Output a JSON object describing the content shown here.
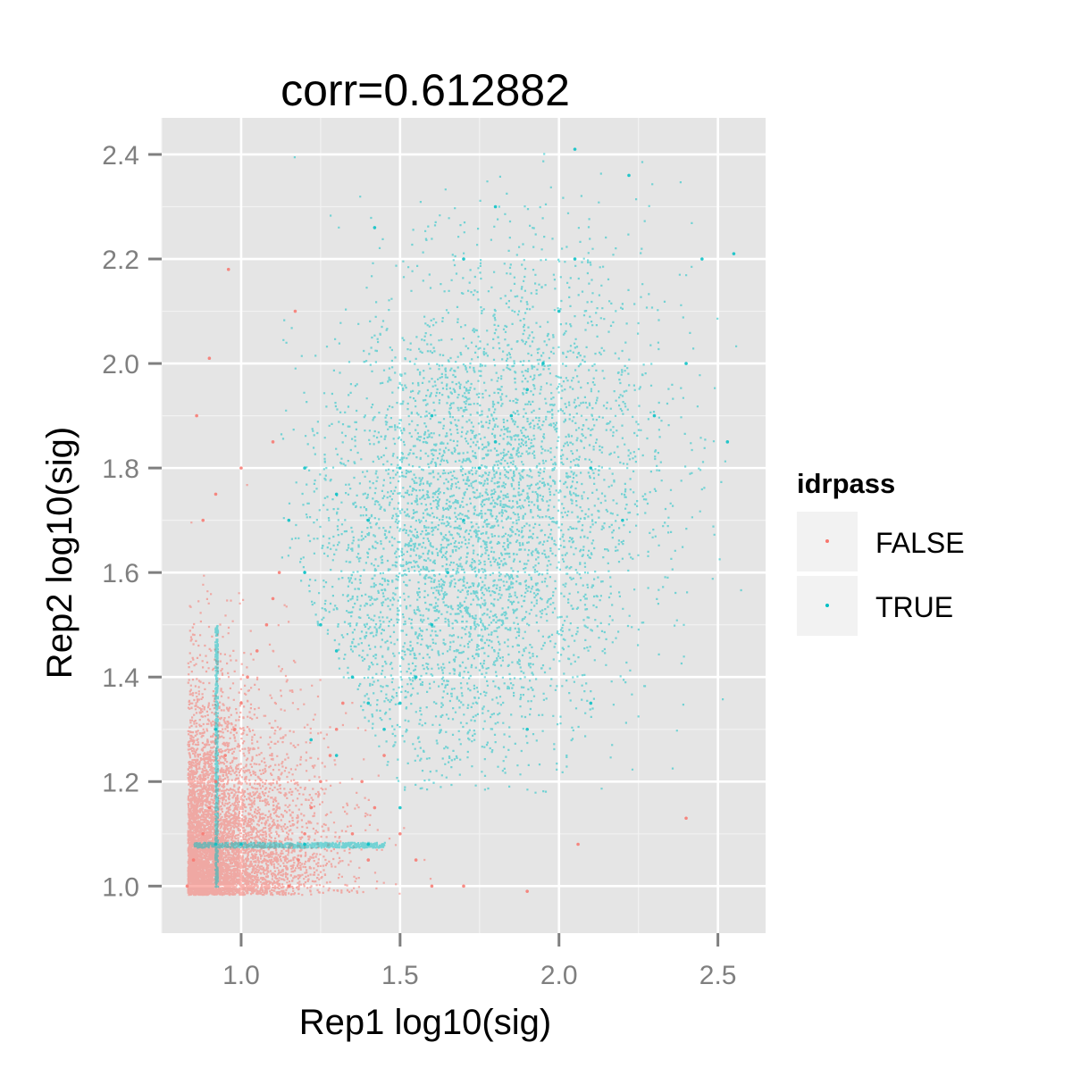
{
  "chart_data": {
    "type": "scatter",
    "title": "corr=0.612882",
    "xlabel": "Rep1 log10(sig)",
    "ylabel": "Rep2 log10(sig)",
    "xlim": [
      0.75,
      2.65
    ],
    "ylim": [
      0.91,
      2.47
    ],
    "x_ticks": [
      1.0,
      1.5,
      2.0,
      2.5
    ],
    "x_tick_labels": [
      "1.0",
      "1.5",
      "2.0",
      "2.5"
    ],
    "y_ticks": [
      1.0,
      1.2,
      1.4,
      1.6,
      1.8,
      2.0,
      2.2,
      2.4
    ],
    "y_tick_labels": [
      "1.0",
      "1.2",
      "1.4",
      "1.6",
      "1.8",
      "2.0",
      "2.2",
      "2.4"
    ],
    "grid": true,
    "background": "#e5e5e5",
    "legend": {
      "title": "idrpass",
      "position": "right",
      "entries": [
        {
          "label": "FALSE",
          "color": "#f8766d"
        },
        {
          "label": "TRUE",
          "color": "#00bfc4"
        }
      ]
    },
    "series": [
      {
        "name": "FALSE",
        "color": "#f8766d",
        "points": [
          [
            0.83,
            1.0
          ],
          [
            0.85,
            1.05
          ],
          [
            0.88,
            1.1
          ],
          [
            0.9,
            1.15
          ],
          [
            0.92,
            1.2
          ],
          [
            0.95,
            1.25
          ],
          [
            0.98,
            1.3
          ],
          [
            1.0,
            1.35
          ],
          [
            1.02,
            1.4
          ],
          [
            1.05,
            1.45
          ],
          [
            1.08,
            1.5
          ],
          [
            1.1,
            1.55
          ],
          [
            1.12,
            1.6
          ],
          [
            1.15,
            1.0
          ],
          [
            1.18,
            1.05
          ],
          [
            1.2,
            1.1
          ],
          [
            1.22,
            1.15
          ],
          [
            1.25,
            1.2
          ],
          [
            1.28,
            1.25
          ],
          [
            1.3,
            1.3
          ],
          [
            1.32,
            1.35
          ],
          [
            1.35,
            1.1
          ],
          [
            1.38,
            1.2
          ],
          [
            1.4,
            1.05
          ],
          [
            1.42,
            1.15
          ],
          [
            1.45,
            1.25
          ],
          [
            1.5,
            1.1
          ],
          [
            1.55,
            1.05
          ],
          [
            1.6,
            1.0
          ],
          [
            1.7,
            1.0
          ],
          [
            0.88,
            1.7
          ],
          [
            0.92,
            1.75
          ],
          [
            1.0,
            1.8
          ],
          [
            0.86,
            1.9
          ],
          [
            0.9,
            2.01
          ],
          [
            0.96,
            2.18
          ],
          [
            1.1,
            1.85
          ],
          [
            1.17,
            2.1
          ],
          [
            1.9,
            0.99
          ],
          [
            2.06,
            1.08
          ],
          [
            2.4,
            1.13
          ]
        ]
      },
      {
        "name": "TRUE",
        "color": "#00bfc4",
        "points": [
          [
            1.25,
            1.5
          ],
          [
            1.3,
            1.45
          ],
          [
            1.35,
            1.4
          ],
          [
            1.4,
            1.35
          ],
          [
            1.45,
            1.3
          ],
          [
            1.5,
            1.35
          ],
          [
            1.55,
            1.4
          ],
          [
            1.6,
            1.5
          ],
          [
            1.65,
            1.6
          ],
          [
            1.7,
            1.7
          ],
          [
            1.75,
            1.8
          ],
          [
            1.8,
            1.85
          ],
          [
            1.85,
            1.9
          ],
          [
            1.9,
            1.95
          ],
          [
            1.95,
            2.0
          ],
          [
            2.0,
            2.1
          ],
          [
            2.05,
            2.2
          ],
          [
            1.6,
            1.9
          ],
          [
            1.5,
            1.8
          ],
          [
            1.4,
            1.7
          ],
          [
            1.3,
            1.75
          ],
          [
            1.2,
            1.8
          ],
          [
            1.15,
            1.7
          ],
          [
            1.2,
            1.6
          ],
          [
            1.7,
            2.2
          ],
          [
            1.8,
            2.3
          ],
          [
            2.1,
            1.8
          ],
          [
            2.2,
            1.7
          ],
          [
            2.3,
            1.9
          ],
          [
            2.4,
            2.0
          ],
          [
            2.05,
            2.41
          ],
          [
            2.22,
            2.36
          ],
          [
            2.45,
            2.2
          ],
          [
            2.55,
            2.21
          ],
          [
            2.53,
            1.85
          ],
          [
            2.1,
            1.35
          ],
          [
            1.9,
            1.3
          ],
          [
            0.92,
            1.08
          ],
          [
            1.0,
            1.08
          ],
          [
            1.2,
            1.08
          ],
          [
            1.4,
            1.08
          ],
          [
            0.92,
            1.3
          ],
          [
            1.22,
            1.28
          ],
          [
            1.3,
            1.25
          ],
          [
            1.5,
            1.15
          ],
          [
            1.42,
            2.26
          ]
        ]
      }
    ]
  }
}
